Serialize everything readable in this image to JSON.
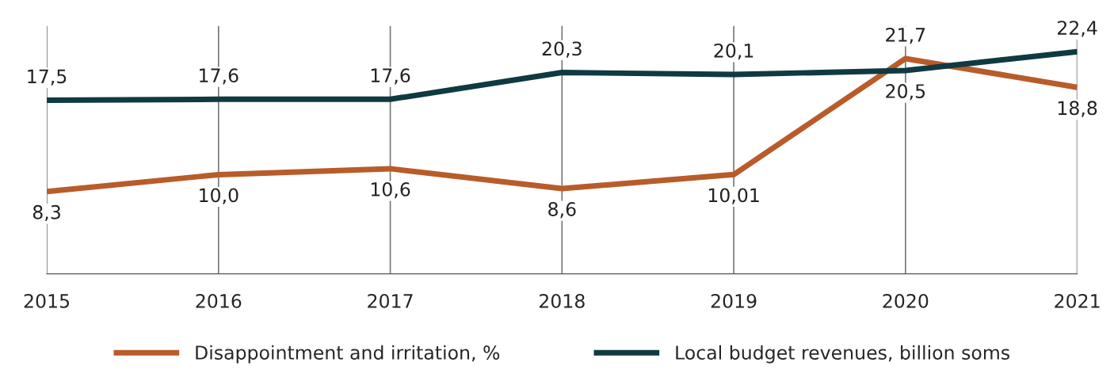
{
  "chart_data": {
    "type": "line",
    "categories": [
      "2015",
      "2016",
      "2017",
      "2018",
      "2019",
      "2020",
      "2021"
    ],
    "series": [
      {
        "name": "Disappointment and irritation, %",
        "color": "#b85c2a",
        "values": [
          8.3,
          10.0,
          10.6,
          8.6,
          10.01,
          21.7,
          18.8
        ],
        "value_labels": [
          "8,3",
          "10,0",
          "10,6",
          "8,6",
          "10,01",
          "21,7",
          "18,8"
        ]
      },
      {
        "name": "Local budget revenues, billion soms",
        "color": "#0f3a42",
        "values": [
          17.5,
          17.6,
          17.6,
          20.3,
          20.1,
          20.5,
          22.4
        ],
        "value_labels": [
          "17,5",
          "17,6",
          "17,6",
          "20,3",
          "20,1",
          "20,5",
          "22,4"
        ]
      }
    ],
    "ylim": [
      0,
      25
    ],
    "grid": "x",
    "legend": "bottom",
    "tick_labels": "x",
    "marker": "none",
    "line_style": "solid"
  }
}
